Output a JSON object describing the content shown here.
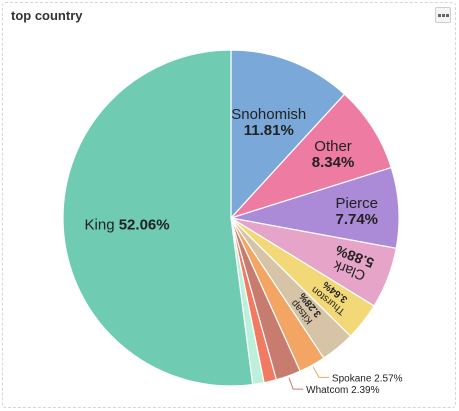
{
  "panel": {
    "title": "top country"
  },
  "icons": {
    "menu": "ellipsis-menu-icon"
  },
  "chart_data": {
    "type": "pie",
    "title": "top country",
    "slices": [
      {
        "name": "Snohomish",
        "value": 11.81,
        "percent_label": "11.81%",
        "color": "#7aa9d9"
      },
      {
        "name": "Other",
        "value": 8.34,
        "percent_label": "8.34%",
        "color": "#ee7ba1"
      },
      {
        "name": "Pierce",
        "value": 7.74,
        "percent_label": "7.74%",
        "color": "#ab8ad7"
      },
      {
        "name": "Clark",
        "value": 5.88,
        "percent_label": "5.88%",
        "color": "#e6a4c9"
      },
      {
        "name": "Thurston",
        "value": 3.64,
        "percent_label": "3.64%",
        "color": "#f2d877"
      },
      {
        "name": "Kitsap",
        "value": 3.28,
        "percent_label": "3.28%",
        "color": "#d7c3a6"
      },
      {
        "name": "Spokane",
        "value": 2.57,
        "percent_label": "2.57%",
        "color": "#f3a563"
      },
      {
        "name": "Whatcom",
        "value": 2.39,
        "percent_label": "2.39%",
        "color": "#c77c6f"
      },
      {
        "name": "",
        "value": 1.2,
        "percent_label": "",
        "color": "#f37a62"
      },
      {
        "name": "",
        "value": 1.09,
        "percent_label": "",
        "color": "#bdf0da"
      },
      {
        "name": "King",
        "value": 52.06,
        "percent_label": "52.06%",
        "color": "#6fcbb2"
      }
    ]
  }
}
